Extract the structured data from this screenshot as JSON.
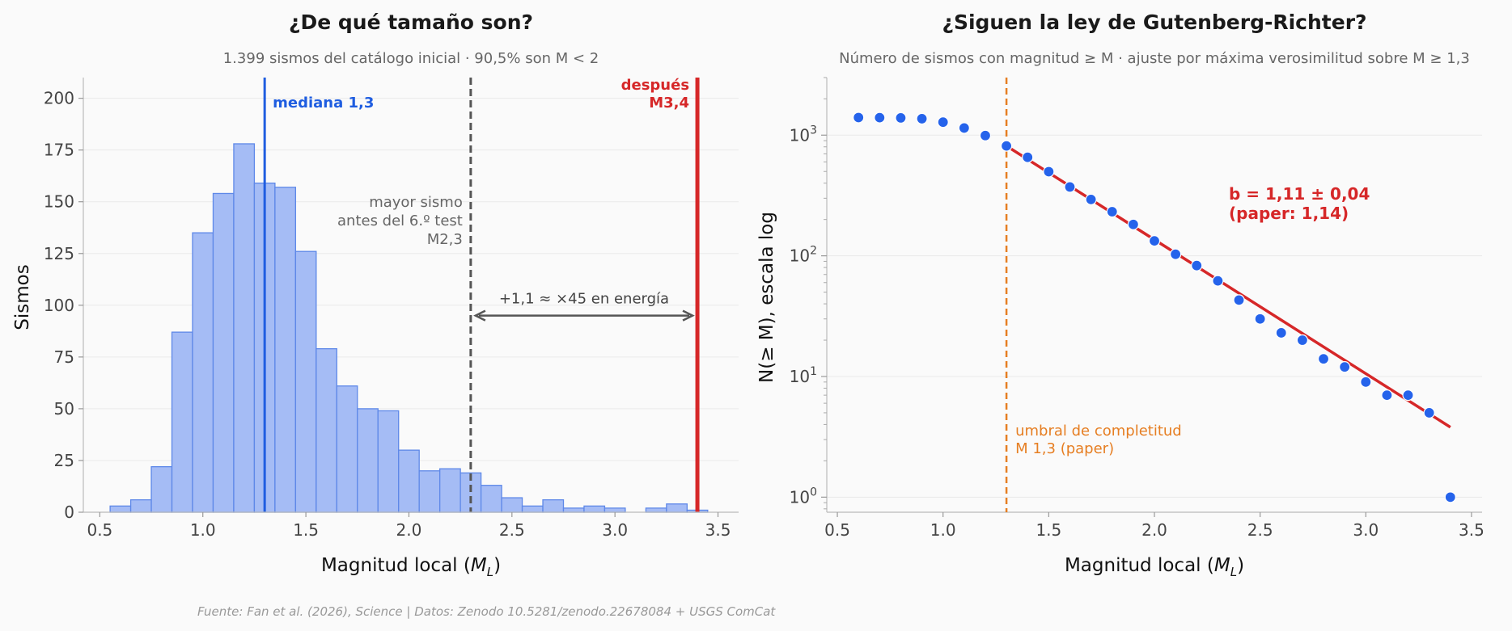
{
  "footer": "Fuente: Fan et al. (2026), Science | Datos: Zenodo 10.5281/zenodo.22678084 + USGS ComCat",
  "colors": {
    "bar_fill": "#a5bcf5",
    "bar_edge": "#5e88e8",
    "median": "#1f5de0",
    "after": "#d62728",
    "before": "#555555",
    "fit": "#d62728",
    "points": "#2563eb",
    "threshold": "#e67e22"
  },
  "chart_data": [
    {
      "type": "bar",
      "title": "¿De qué tamaño son?",
      "subtitle": "1.399 sismos del catálogo inicial · 90,5% son M < 2",
      "xlabel_main": "Magnitud local (",
      "xlabel_sym": "M",
      "xlabel_sub": "L",
      "xlabel_end": ")",
      "ylabel": "Sismos",
      "xlim": [
        0.42,
        3.6
      ],
      "ylim": [
        0,
        210
      ],
      "xticks": [
        0.5,
        1.0,
        1.5,
        2.0,
        2.5,
        3.0,
        3.5
      ],
      "xtick_labels": [
        "0.5",
        "1.0",
        "1.5",
        "2.0",
        "2.5",
        "3.0",
        "3.5"
      ],
      "yticks": [
        0,
        25,
        50,
        75,
        100,
        125,
        150,
        175,
        200
      ],
      "ytick_labels": [
        "0",
        "25",
        "50",
        "75",
        "100",
        "125",
        "150",
        "175",
        "200"
      ],
      "grid": "y",
      "bin_width": 0.1,
      "bin_starts": [
        0.55,
        0.65,
        0.75,
        0.85,
        0.95,
        1.05,
        1.15,
        1.25,
        1.35,
        1.45,
        1.55,
        1.65,
        1.75,
        1.85,
        1.95,
        2.05,
        2.15,
        2.25,
        2.35,
        2.45,
        2.55,
        2.65,
        2.75,
        2.85,
        2.95,
        3.05,
        3.15,
        3.25,
        3.35
      ],
      "counts": [
        3,
        6,
        22,
        87,
        135,
        154,
        178,
        159,
        157,
        126,
        79,
        61,
        50,
        49,
        30,
        20,
        21,
        19,
        13,
        7,
        3,
        6,
        2,
        3,
        2,
        0,
        2,
        4,
        1
      ],
      "median": {
        "x": 1.3,
        "label": "mediana 1,3"
      },
      "before": {
        "x": 2.3,
        "label_lines": [
          "mayor sismo",
          "antes del 6.º test",
          "M2,3"
        ]
      },
      "after": {
        "x": 3.4,
        "label_lines": [
          "después",
          "M3,4"
        ]
      },
      "arrow": {
        "from": 2.3,
        "to": 3.4,
        "y": 95,
        "label": "+1,1 ≈ ×45 en energía"
      }
    },
    {
      "type": "scatter",
      "title": "¿Siguen la ley de Gutenberg-Richter?",
      "subtitle": "Número de sismos con magnitud ≥ M · ajuste por máxima verosimilitud sobre M ≥ 1,3",
      "xlabel_main": "Magnitud local (",
      "xlabel_sym": "M",
      "xlabel_sub": "L",
      "xlabel_end": ")",
      "ylabel": "N(≥ M), escala log",
      "yscale": "log",
      "xlim": [
        0.45,
        3.55
      ],
      "ylim": [
        0.75,
        3000
      ],
      "xticks": [
        0.5,
        1.0,
        1.5,
        2.0,
        2.5,
        3.0,
        3.5
      ],
      "xtick_labels": [
        "0.5",
        "1.0",
        "1.5",
        "2.0",
        "2.5",
        "3.0",
        "3.5"
      ],
      "yticks": [
        1,
        10,
        100,
        1000
      ],
      "ytick_base": "10",
      "ytick_exps": [
        "0",
        "1",
        "2",
        "3"
      ],
      "grid": "y",
      "x": [
        0.6,
        0.7,
        0.8,
        0.9,
        1.0,
        1.1,
        1.2,
        1.3,
        1.4,
        1.5,
        1.6,
        1.7,
        1.8,
        1.9,
        2.0,
        2.1,
        2.2,
        2.3,
        2.4,
        2.5,
        2.6,
        2.7,
        2.8,
        2.9,
        3.0,
        3.1,
        3.2,
        3.3,
        3.4
      ],
      "y": [
        1399,
        1396,
        1390,
        1368,
        1281,
        1146,
        992,
        814,
        655,
        498,
        372,
        293,
        232,
        182,
        133,
        103,
        83,
        62,
        43,
        30,
        23,
        20,
        14,
        12,
        9,
        7,
        7,
        5,
        1
      ],
      "fit": {
        "x": [
          1.3,
          3.4
        ],
        "y": [
          814,
          3.8
        ]
      },
      "fit_label_lines": [
        "b = 1,11 ± 0,04",
        "(paper: 1,14)"
      ],
      "threshold": {
        "x": 1.3,
        "label_lines": [
          "umbral de completitud",
          "M 1,3 (paper)"
        ]
      }
    }
  ]
}
